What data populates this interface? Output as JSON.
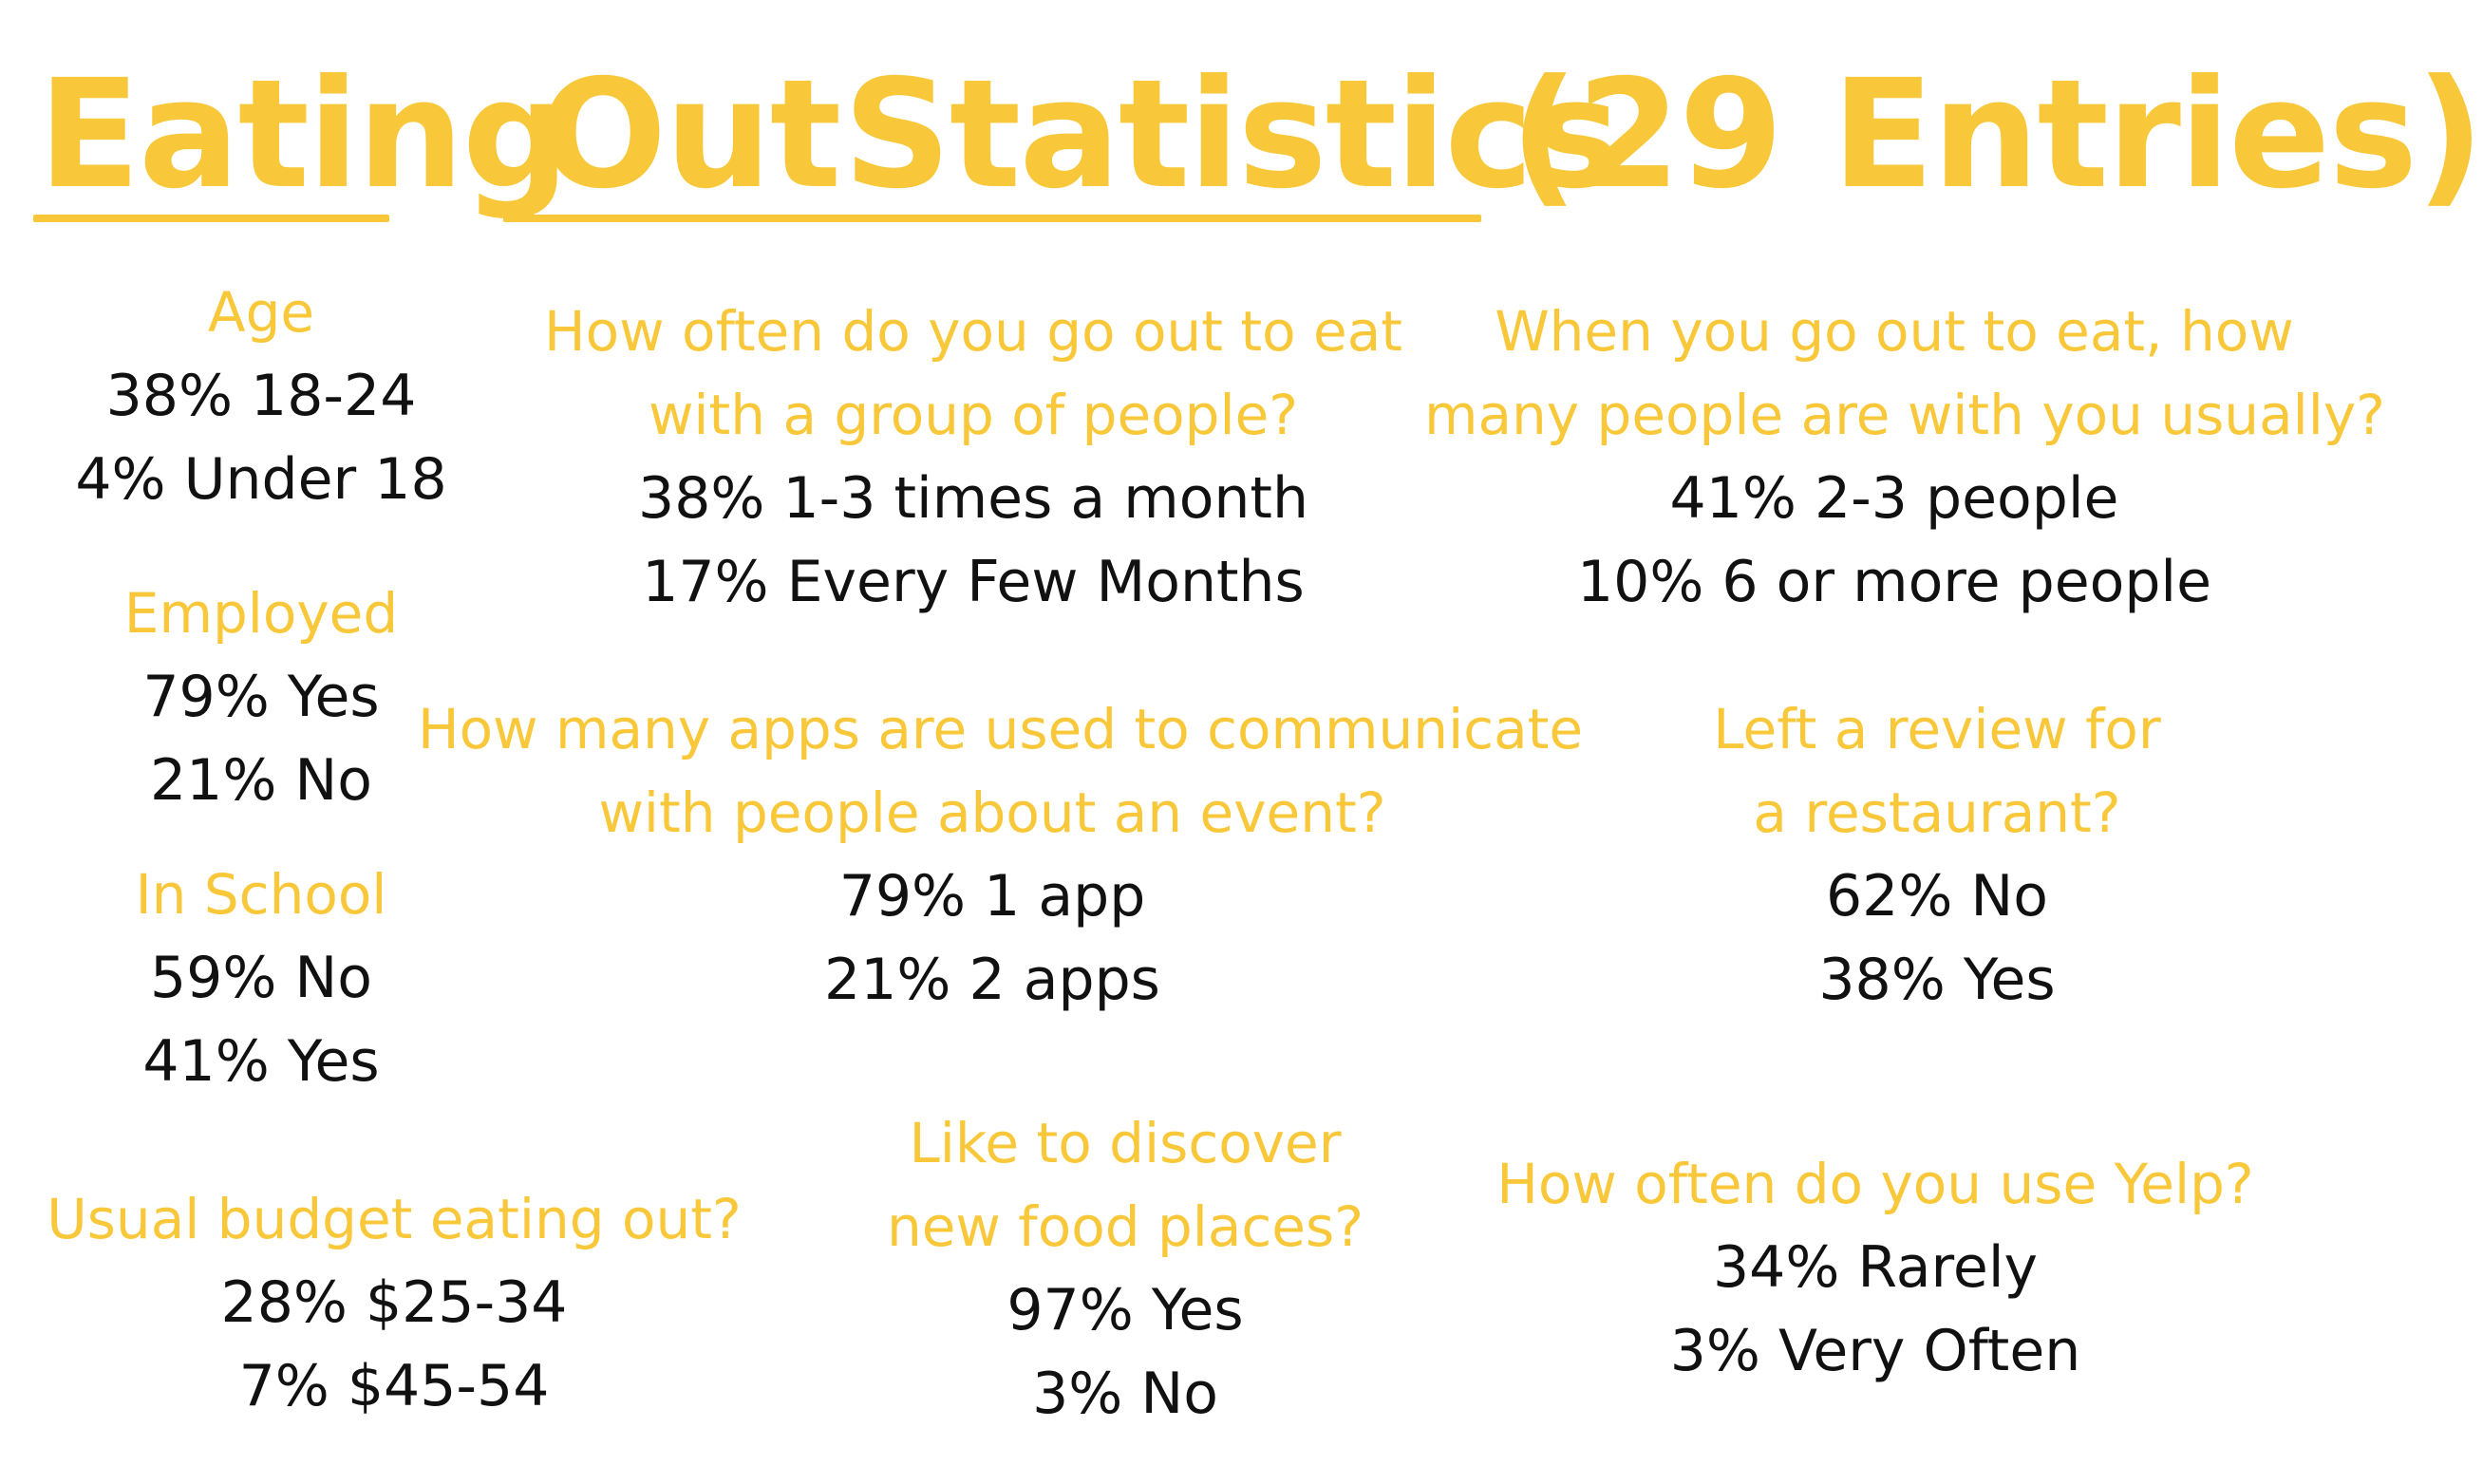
{
  "title": {
    "word1": "Eating",
    "word2": "Out",
    "word3": "Statistics",
    "word4": "(29 Entries)"
  },
  "colors": {
    "accent": "#F8C83A",
    "text": "#111111",
    "background": "#FFFFFF"
  },
  "sections": {
    "age": {
      "question": "Age",
      "answers": [
        "38% 18-24",
        "4% Under 18"
      ]
    },
    "employed": {
      "question": "Employed",
      "answers": [
        "79% Yes",
        "21% No"
      ]
    },
    "in_school": {
      "question": "In School",
      "answers": [
        "59% No",
        "41% Yes"
      ]
    },
    "budget": {
      "question": "Usual budget eating out?",
      "answers": [
        "28% $25-34",
        "7% $45-54"
      ]
    },
    "group_frequency": {
      "question_lines": [
        "How often do you go out to eat",
        "with a group of people?"
      ],
      "answers": [
        "38% 1-3 times a month",
        "17% Every Few Months"
      ]
    },
    "people_count": {
      "question_lines": [
        "When you go out to eat, how",
        "many people are with you usually?"
      ],
      "answers": [
        "41% 2-3 people",
        "10% 6 or more people"
      ]
    },
    "apps": {
      "question_lines": [
        "How many apps are used to communicate",
        "with people about an event?"
      ],
      "answers": [
        "79% 1 app",
        "21% 2 apps"
      ]
    },
    "review": {
      "question_lines": [
        "Left a review for",
        "a restaurant?"
      ],
      "answers": [
        "62% No",
        "38% Yes"
      ]
    },
    "discover": {
      "question_lines": [
        "Like to discover",
        "new food places?"
      ],
      "answers": [
        "97% Yes",
        "3% No"
      ]
    },
    "yelp": {
      "question": "How often do you use Yelp?",
      "answers": [
        "34% Rarely",
        "3% Very Often"
      ]
    }
  }
}
